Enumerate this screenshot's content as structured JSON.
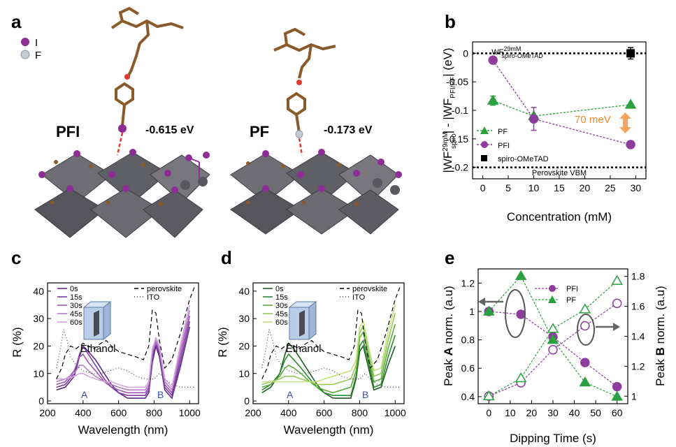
{
  "panel_labels": {
    "a": "a",
    "b": "b",
    "c": "c",
    "d": "d",
    "e": "e"
  },
  "panel_a": {
    "legend": [
      {
        "label": "I",
        "color": "#8e2d97"
      },
      {
        "label": "F",
        "color": "#c4ccd8"
      }
    ],
    "structures": [
      {
        "name": "PFI",
        "energy": "-0.615 eV"
      },
      {
        "name": "PF",
        "energy": "-0.173 eV"
      }
    ]
  },
  "chart_data": [
    {
      "id": "b",
      "type": "scatter",
      "xlabel": "Concentration (mM)",
      "ylabel": "|WF29mM spiro| - |WF PFI/PF| (eV)",
      "ylabel_parts": {
        "a": "|WF",
        "a_sup": "29mM",
        "a_sub": "spiro",
        "b": "| - |WF",
        "b_sub": "PFI/PF",
        "c": "| (eV)"
      },
      "xlim": [
        -2,
        32
      ],
      "ylim": [
        -0.22,
        0.02
      ],
      "xticks": [
        0,
        5,
        10,
        15,
        20,
        25,
        30
      ],
      "yticks": [
        0,
        -0.05,
        -0.1,
        -0.15,
        -0.2
      ],
      "ytick_labels": [
        "0",
        "-0.05",
        "-0.1",
        "-0.15",
        "-0.2"
      ],
      "ref_lines": [
        {
          "y": 0,
          "label": "WF",
          "label_sup": "29mM",
          "label_sub": "spiro-OMeTAD"
        },
        {
          "y": -0.2,
          "label": "Perovskite VBM"
        }
      ],
      "annotation": "70 meV",
      "legend_position": "bottom-left",
      "series": [
        {
          "name": "PF",
          "color": "#2aa041",
          "marker": "triangle",
          "x": [
            2,
            10,
            29
          ],
          "y": [
            -0.083,
            -0.11,
            -0.09
          ],
          "err": [
            0.008,
            0,
            0
          ]
        },
        {
          "name": "PFI",
          "color": "#8e3d9e",
          "marker": "circle",
          "x": [
            2,
            10,
            29
          ],
          "y": [
            -0.012,
            -0.115,
            -0.16
          ],
          "err": [
            0,
            0.02,
            0
          ]
        },
        {
          "name": "spiro-OMeTAD",
          "color": "#000000",
          "marker": "square",
          "x": [
            29
          ],
          "y": [
            0
          ],
          "err": [
            0.01
          ]
        }
      ]
    },
    {
      "id": "c",
      "type": "line",
      "xlabel": "Wavelength (nm)",
      "ylabel": "R (%)",
      "xlim": [
        200,
        1050
      ],
      "ylim": [
        -1,
        43
      ],
      "xticks": [
        200,
        400,
        600,
        800,
        1000
      ],
      "yticks": [
        0,
        10,
        20,
        30,
        40
      ],
      "inset_label": "Ethanol",
      "region_labels": [
        {
          "text": "A",
          "x": 400
        },
        {
          "text": "B",
          "x": 800
        }
      ],
      "legend_position": "top",
      "series": [
        {
          "name": "0s",
          "color": "#5b2a8a",
          "x": [
            250,
            300,
            350,
            380,
            400,
            430,
            470,
            520,
            560,
            600,
            650,
            700,
            750,
            770,
            790,
            810,
            830,
            860,
            900,
            950,
            1000
          ],
          "y": [
            4,
            5,
            9,
            16,
            20,
            18,
            15,
            10,
            6,
            3,
            1,
            1,
            1,
            3,
            14,
            20,
            16,
            4,
            1,
            13,
            27
          ]
        },
        {
          "name": "15s",
          "color": "#7c3a9e",
          "x": [
            250,
            300,
            350,
            380,
            400,
            430,
            470,
            520,
            560,
            600,
            650,
            700,
            750,
            770,
            790,
            810,
            830,
            860,
            900,
            950,
            1000
          ],
          "y": [
            5,
            6,
            10,
            17,
            20,
            17,
            13,
            8,
            5,
            3,
            2,
            2,
            2,
            4,
            16,
            21,
            17,
            5,
            2,
            15,
            29
          ]
        },
        {
          "name": "30s",
          "color": "#9a56b0",
          "x": [
            250,
            300,
            350,
            380,
            400,
            430,
            470,
            520,
            560,
            600,
            650,
            700,
            750,
            770,
            790,
            810,
            830,
            860,
            900,
            950,
            1000
          ],
          "y": [
            6,
            7,
            11,
            16,
            17,
            14,
            11,
            7,
            5,
            4,
            3,
            3,
            3,
            5,
            17,
            21,
            18,
            6,
            3,
            17,
            31
          ]
        },
        {
          "name": "45s",
          "color": "#b77ac6",
          "x": [
            250,
            300,
            350,
            380,
            400,
            430,
            470,
            520,
            560,
            600,
            650,
            700,
            750,
            770,
            790,
            810,
            830,
            860,
            900,
            950,
            1000
          ],
          "y": [
            7,
            8,
            10,
            13,
            13,
            11,
            9,
            7,
            6,
            5,
            4,
            4,
            4,
            6,
            18,
            22,
            19,
            7,
            4,
            19,
            33
          ]
        },
        {
          "name": "60s",
          "color": "#d2a6dc",
          "x": [
            250,
            300,
            350,
            380,
            400,
            430,
            470,
            520,
            560,
            600,
            650,
            700,
            750,
            770,
            790,
            810,
            830,
            860,
            900,
            950,
            1000
          ],
          "y": [
            8,
            8,
            9,
            10,
            10,
            9,
            8,
            7,
            7,
            6,
            5,
            5,
            5,
            7,
            19,
            23,
            20,
            8,
            5,
            21,
            35
          ]
        },
        {
          "name": "perovskite",
          "color": "#000000",
          "dash": "6,4",
          "x": [
            250,
            280,
            300,
            330,
            360,
            400,
            430,
            460,
            500,
            530,
            560,
            600,
            650,
            700,
            740,
            770,
            790,
            810,
            830,
            860,
            900,
            950,
            1000,
            1030
          ],
          "y": [
            8,
            12,
            17,
            20,
            19,
            21,
            20,
            19,
            21,
            22,
            20,
            18,
            17,
            16,
            15,
            20,
            33,
            32,
            22,
            12,
            15,
            25,
            37,
            42
          ]
        },
        {
          "name": "ITO",
          "color": "#444444",
          "dash": "1,3",
          "x": [
            250,
            270,
            290,
            310,
            330,
            360,
            400,
            450,
            500,
            550,
            600,
            650,
            700,
            750,
            800,
            830,
            860,
            900,
            950,
            1000,
            1030
          ],
          "y": [
            12,
            18,
            26,
            22,
            16,
            13,
            11,
            10,
            10,
            11,
            12,
            11,
            9,
            8,
            8,
            10,
            8,
            6,
            5,
            5,
            5
          ]
        }
      ]
    },
    {
      "id": "d",
      "type": "line",
      "xlabel": "Wavelength (nm)",
      "ylabel": "R (%)",
      "xlim": [
        200,
        1050
      ],
      "ylim": [
        -1,
        43
      ],
      "xticks": [
        200,
        400,
        600,
        800,
        1000
      ],
      "yticks": [
        0,
        10,
        20,
        30,
        40
      ],
      "inset_label": "Ethanol",
      "region_labels": [
        {
          "text": "A",
          "x": 400
        },
        {
          "text": "B",
          "x": 800
        }
      ],
      "legend_position": "top",
      "series": [
        {
          "name": "0s",
          "color": "#1f5f1f",
          "x": [
            250,
            300,
            350,
            380,
            400,
            430,
            470,
            520,
            560,
            600,
            650,
            700,
            750,
            780,
            800,
            820,
            850,
            880,
            920,
            960,
            1000
          ],
          "y": [
            3,
            5,
            10,
            17,
            21,
            19,
            15,
            10,
            6,
            3,
            1,
            1,
            1,
            8,
            18,
            20,
            12,
            4,
            5,
            13,
            20
          ]
        },
        {
          "name": "15s",
          "color": "#2e8b2e",
          "x": [
            250,
            300,
            350,
            380,
            400,
            430,
            470,
            520,
            560,
            600,
            650,
            700,
            750,
            780,
            800,
            820,
            850,
            880,
            920,
            960,
            1000
          ],
          "y": [
            4,
            6,
            10,
            15,
            17,
            15,
            12,
            8,
            5,
            3,
            2,
            2,
            2,
            9,
            20,
            22,
            14,
            5,
            6,
            16,
            24
          ]
        },
        {
          "name": "30s",
          "color": "#5cae3c",
          "x": [
            250,
            300,
            350,
            380,
            400,
            430,
            470,
            520,
            560,
            600,
            650,
            700,
            750,
            780,
            800,
            820,
            850,
            880,
            920,
            960,
            1000
          ],
          "y": [
            5,
            6,
            9,
            12,
            13,
            12,
            10,
            7,
            5,
            4,
            3,
            4,
            5,
            11,
            23,
            25,
            16,
            7,
            8,
            19,
            28
          ]
        },
        {
          "name": "45s",
          "color": "#93c956",
          "x": [
            250,
            300,
            350,
            380,
            400,
            430,
            470,
            520,
            560,
            600,
            650,
            700,
            750,
            780,
            800,
            820,
            850,
            880,
            920,
            960,
            1000
          ],
          "y": [
            6,
            7,
            8,
            9,
            9,
            9,
            8,
            7,
            6,
            6,
            6,
            7,
            8,
            13,
            25,
            27,
            18,
            9,
            10,
            22,
            32
          ]
        },
        {
          "name": "60s",
          "color": "#c2df80",
          "x": [
            250,
            300,
            350,
            380,
            400,
            430,
            470,
            520,
            560,
            600,
            650,
            700,
            750,
            780,
            800,
            820,
            850,
            880,
            920,
            960,
            1000
          ],
          "y": [
            7,
            7,
            7,
            7,
            7,
            7,
            7,
            7,
            7,
            8,
            9,
            10,
            11,
            15,
            27,
            29,
            20,
            11,
            12,
            25,
            35
          ]
        },
        {
          "name": "perovskite",
          "color": "#000000",
          "dash": "6,4",
          "x": [
            250,
            280,
            300,
            330,
            360,
            400,
            430,
            460,
            500,
            530,
            560,
            600,
            650,
            700,
            740,
            770,
            790,
            810,
            830,
            860,
            900,
            950,
            1000,
            1030
          ],
          "y": [
            8,
            12,
            17,
            20,
            19,
            21,
            20,
            19,
            21,
            22,
            20,
            18,
            17,
            16,
            15,
            20,
            33,
            32,
            22,
            12,
            15,
            25,
            37,
            42
          ]
        },
        {
          "name": "ITO",
          "color": "#444444",
          "dash": "1,3",
          "x": [
            250,
            270,
            290,
            310,
            330,
            360,
            400,
            450,
            500,
            550,
            600,
            650,
            700,
            750,
            800,
            830,
            860,
            900,
            950,
            1000,
            1030
          ],
          "y": [
            12,
            18,
            26,
            22,
            16,
            13,
            11,
            10,
            10,
            11,
            12,
            11,
            9,
            8,
            8,
            10,
            8,
            6,
            5,
            5,
            5
          ]
        }
      ]
    },
    {
      "id": "e",
      "type": "line",
      "xlabel": "Dipping Time (s)",
      "ylabel_left": "Peak A norm. (a.u)",
      "ylabel_right": "Peak B norm. (a.u)",
      "ylabel_left_parts": {
        "a": "Peak ",
        "b": "A",
        "c": " norm. (a.u)"
      },
      "ylabel_right_parts": {
        "a": "Peak ",
        "b": "B",
        "c": " norm. (a.u)"
      },
      "xlim": [
        -5,
        65
      ],
      "ylim_left": [
        0.35,
        1.3
      ],
      "ylim_right": [
        0.95,
        1.85
      ],
      "xticks": [
        0,
        10,
        20,
        30,
        40,
        50,
        60
      ],
      "yticks_left": [
        0.4,
        0.6,
        0.8,
        1,
        1.2
      ],
      "yticks_right": [
        1,
        1.2,
        1.4,
        1.6,
        1.8
      ],
      "ytick_left_labels": [
        "0.4",
        "0.6",
        "0.8",
        "1",
        "1.2"
      ],
      "ytick_right_labels": [
        "1",
        "1.2",
        "1.4",
        "1.6",
        "1.8"
      ],
      "legend_position": "top-center",
      "series": [
        {
          "name": "PFI",
          "axis": "left",
          "color": "#8e3d9e",
          "marker": "circle",
          "filled": true,
          "x": [
            0,
            15,
            30,
            45,
            60
          ],
          "y": [
            1.0,
            0.98,
            0.82,
            0.64,
            0.47
          ]
        },
        {
          "name": "PF",
          "axis": "left",
          "color": "#2aa041",
          "marker": "triangle",
          "filled": true,
          "x": [
            0,
            15,
            30,
            45,
            60
          ],
          "y": [
            1.0,
            1.25,
            0.8,
            0.5,
            0.4
          ]
        },
        {
          "name": "PFI (B)",
          "axis": "right",
          "color": "#8e3d9e",
          "marker": "circle",
          "filled": false,
          "x": [
            0,
            15,
            30,
            45,
            60
          ],
          "y": [
            1.0,
            1.09,
            1.31,
            1.47,
            1.62
          ]
        },
        {
          "name": "PF (B)",
          "axis": "right",
          "color": "#2aa041",
          "marker": "triangle",
          "filled": false,
          "x": [
            0,
            15,
            30,
            45,
            60
          ],
          "y": [
            1.0,
            1.12,
            1.45,
            1.58,
            1.77
          ]
        }
      ]
    }
  ]
}
